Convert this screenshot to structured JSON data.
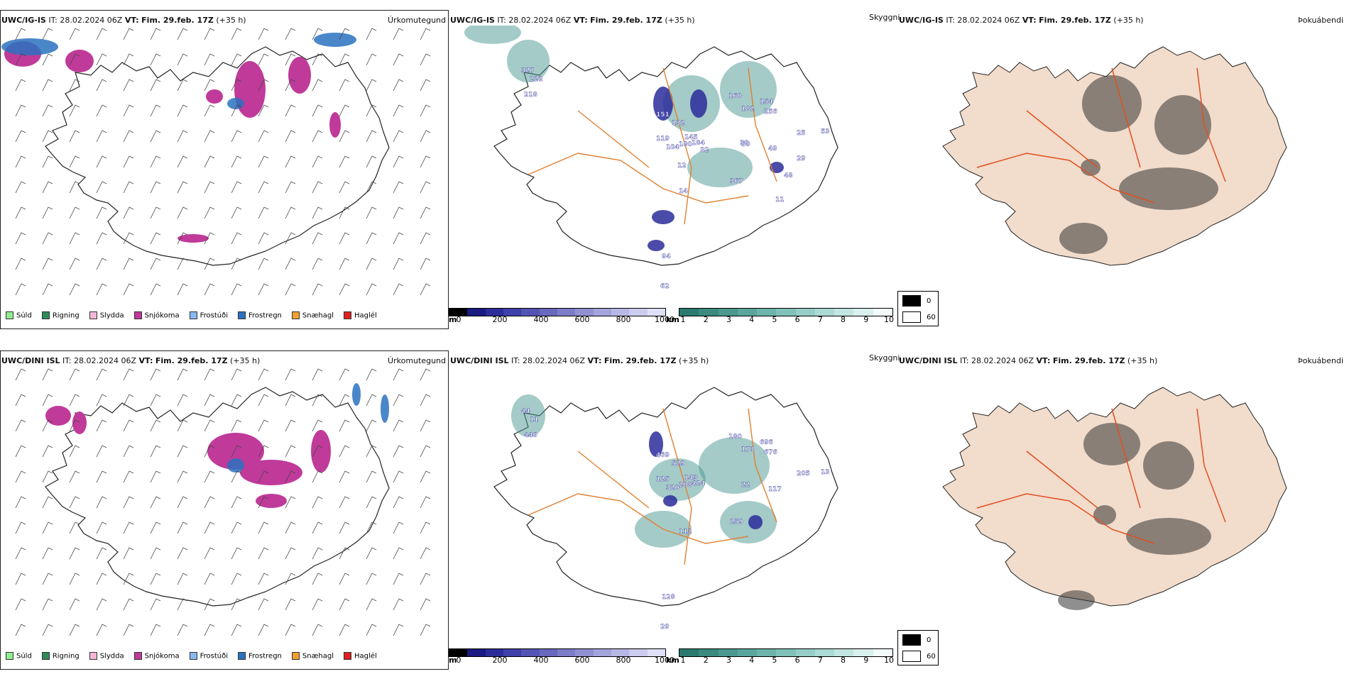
{
  "rows": [
    {
      "model": "UWC/IG-IS",
      "it_label": "IT:",
      "it_value": "28.02.2024 06Z",
      "vt_label": "VT:",
      "vt_value": "Fim. 29.feb. 17Z",
      "lead": "(+35 h)"
    },
    {
      "model": "UWC/DINI ISL",
      "it_label": "IT:",
      "it_value": "28.02.2024 06Z",
      "vt_label": "VT:",
      "vt_value": "Fim. 29.feb. 17Z",
      "lead": "(+35 h)"
    }
  ],
  "panel_titles": {
    "precip_type": "Úrkomutegund",
    "visibility": "Skyggni",
    "fog": "Þokuábendi"
  },
  "precip_legend": [
    {
      "label": "Súld",
      "color": "#90ee90"
    },
    {
      "label": "Rigning",
      "color": "#2e8b57"
    },
    {
      "label": "Slydda",
      "color": "#f4b6d8"
    },
    {
      "label": "Snjókoma",
      "color": "#c03a9a"
    },
    {
      "label": "Frostúði",
      "color": "#87b8f0"
    },
    {
      "label": "Frostregn",
      "color": "#2a72c0"
    },
    {
      "label": "Snæhagl",
      "color": "#f0a030"
    },
    {
      "label": "Haglél",
      "color": "#e02020"
    }
  ],
  "ceiling_bar": {
    "unit": "m",
    "ticks": [
      "0",
      "200",
      "400",
      "600",
      "800",
      "1000"
    ],
    "colors": [
      "#000000",
      "#1a1a80",
      "#2c2c9a",
      "#4040aa",
      "#5454b4",
      "#6868be",
      "#7c7cc8",
      "#9090d2",
      "#a4a4dc",
      "#b8b8e6",
      "#ccccf0",
      "#e0e0f8"
    ]
  },
  "vis_bar": {
    "unit": "km",
    "ticks": [
      "1",
      "2",
      "3",
      "4",
      "5",
      "6",
      "7",
      "8",
      "9",
      "10"
    ],
    "colors": [
      "#2a7a70",
      "#3a8a80",
      "#4a9890",
      "#5aa69e",
      "#6cb4ac",
      "#80c2ba",
      "#96cec8",
      "#acdad4",
      "#c2e6e2",
      "#d8f0ee",
      "#f2fbfa"
    ]
  },
  "fog_legend": [
    {
      "label": "0",
      "color": "#000000"
    },
    {
      "label": "60",
      "color": "#ffffff"
    }
  ],
  "vis_labels_top": [
    "327",
    "222",
    "218",
    "151",
    "132",
    "119",
    "104",
    "180",
    "184",
    "145",
    "160",
    "182",
    "154",
    "256",
    "50",
    "49",
    "25",
    "53",
    "367",
    "14",
    "94",
    "62",
    "11",
    "30",
    "12",
    "29",
    "32",
    "48"
  ],
  "vis_labels_bottom": [
    "44",
    "11",
    "440",
    "469",
    "529",
    "125",
    "320",
    "208",
    "424",
    "143",
    "180",
    "173",
    "696",
    "676",
    "22",
    "117",
    "205",
    "13",
    "259",
    "112",
    "128",
    "29"
  ]
}
